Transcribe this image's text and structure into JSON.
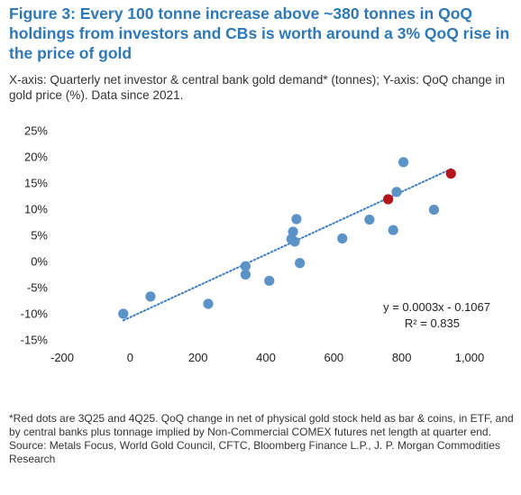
{
  "header": {
    "title": "Figure 3: Every 100 tonne increase above ~380 tonnes in QoQ holdings from investors and CBs is worth around a 3% QoQ rise in the price of gold",
    "subtitle": "X-axis: Quarterly net investor & central bank gold demand* (tonnes); Y-axis: QoQ change in gold price (%). Data since 2021."
  },
  "colors": {
    "title": "#2f78b7",
    "point_blue": "#5b93c7",
    "point_red": "#b4141c",
    "trendline": "#3e7fc1"
  },
  "chart_data": {
    "type": "scatter",
    "xlim": [
      -200,
      1000
    ],
    "ylim": [
      -15,
      25
    ],
    "x_ticks": [
      "-200",
      "0",
      "200",
      "400",
      "600",
      "800",
      "1,000"
    ],
    "y_ticks": [
      "25%",
      "20%",
      "15%",
      "10%",
      "5%",
      "0%",
      "-5%",
      "-10%",
      "-15%"
    ],
    "x_tick_values": [
      -200,
      0,
      200,
      400,
      600,
      800,
      1000
    ],
    "y_tick_values": [
      25,
      20,
      15,
      10,
      5,
      0,
      -5,
      -10,
      -15
    ],
    "grid": false,
    "series": [
      {
        "color": "#5b93c7",
        "points": [
          [
            -20,
            -10
          ],
          [
            60,
            -6.7
          ],
          [
            230,
            -8.1
          ],
          [
            340,
            -0.9
          ],
          [
            340,
            -2.5
          ],
          [
            410,
            -3.7
          ],
          [
            475,
            4.3
          ],
          [
            480,
            5.7
          ],
          [
            485,
            3.8
          ],
          [
            490,
            8.1
          ],
          [
            500,
            -0.3
          ],
          [
            625,
            4.4
          ],
          [
            705,
            8.0
          ],
          [
            775,
            6.0
          ],
          [
            785,
            13.3
          ],
          [
            805,
            19.0
          ],
          [
            895,
            9.9
          ]
        ]
      },
      {
        "color": "#b4141c",
        "points": [
          [
            760,
            11.9
          ],
          [
            945,
            16.8
          ]
        ]
      }
    ],
    "trendline": {
      "x_range": [
        -20,
        945
      ],
      "slope_pct_per_tonne": 0.03,
      "intercept_pct": -10.67,
      "equation": "y = 0.0003x - 0.1067",
      "r_squared": "R² = 0.835"
    }
  },
  "footnote": {
    "line1": "*Red dots are 3Q25 and 4Q25. QoQ change in net of physical gold stock held as bar & coins, in ETF, and by central banks plus tonnage implied by Non-Commercial COMEX futures net length at quarter end.",
    "line2": "Source: Metals Focus, World Gold Council, CFTC, Bloomberg Finance L.P., J. P. Morgan Commodities Research"
  }
}
